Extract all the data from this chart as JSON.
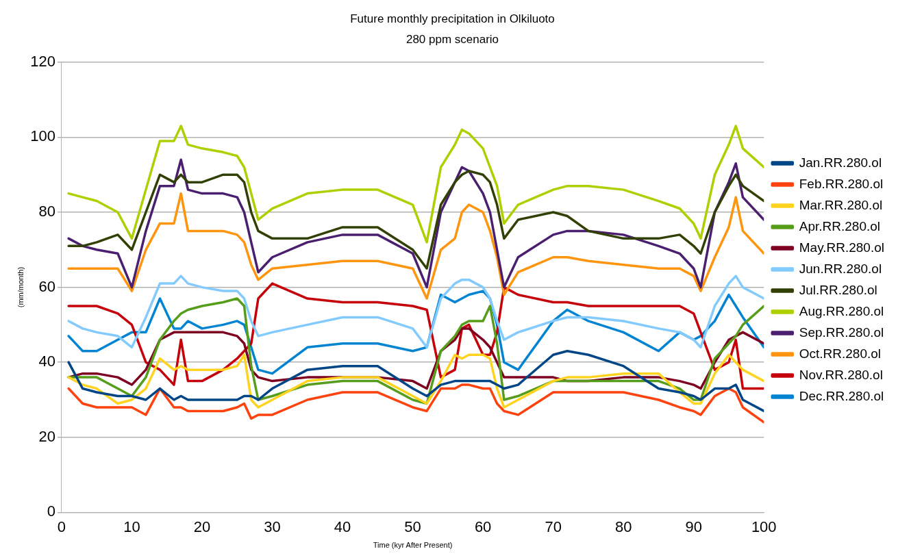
{
  "chart_data": {
    "type": "line",
    "title": "Future monthly precipitation in Olkiluoto",
    "subtitle": "280 ppm scenario",
    "xlabel": "Time (kyr After Present)",
    "ylabel": "(mm/month)",
    "x": [
      1,
      3,
      5,
      8,
      10,
      12,
      14,
      16,
      17,
      18,
      20,
      23,
      25,
      26,
      27,
      28,
      30,
      35,
      40,
      45,
      50,
      52,
      54,
      56,
      57,
      58,
      60,
      61,
      62,
      63,
      65,
      70,
      72,
      75,
      80,
      85,
      88,
      90,
      91,
      93,
      95,
      96,
      97,
      100
    ],
    "xlim": [
      0,
      100
    ],
    "xticks": [
      0,
      10,
      20,
      30,
      40,
      50,
      60,
      70,
      80,
      90,
      100
    ],
    "ylim": [
      0,
      120
    ],
    "yticks": [
      0,
      20,
      40,
      60,
      80,
      100,
      120
    ],
    "grid": "y",
    "legend": "right",
    "marker": "none",
    "line_style": "solid",
    "series": [
      {
        "name": "Jan.RR.280.ol",
        "color": "#004586",
        "values": [
          40,
          33,
          32,
          31,
          31,
          30,
          33,
          30,
          31,
          30,
          30,
          30,
          30,
          31,
          31,
          30,
          33,
          38,
          39,
          39,
          33,
          31,
          34,
          35,
          35,
          35,
          35,
          35,
          34,
          33,
          34,
          42,
          43,
          42,
          39,
          33,
          32,
          31,
          30,
          33,
          33,
          34,
          30,
          27
        ]
      },
      {
        "name": "Feb.RR.280.ol",
        "color": "#ff420e",
        "values": [
          33,
          29,
          28,
          28,
          28,
          26,
          33,
          28,
          28,
          27,
          27,
          27,
          28,
          29,
          25,
          26,
          26,
          30,
          32,
          32,
          28,
          27,
          33,
          33,
          34,
          34,
          33,
          33,
          29,
          27,
          26,
          32,
          32,
          32,
          32,
          30,
          28,
          27,
          26,
          31,
          33,
          32,
          28,
          24
        ]
      },
      {
        "name": "Mar.RR.280.ol",
        "color": "#ffd320",
        "values": [
          36,
          34,
          33,
          29,
          30,
          33,
          41,
          38,
          39,
          38,
          38,
          38,
          39,
          42,
          30,
          28,
          30,
          35,
          36,
          36,
          31,
          29,
          35,
          42,
          41,
          42,
          42,
          41,
          33,
          28,
          30,
          35,
          36,
          36,
          37,
          37,
          32,
          29,
          29,
          37,
          42,
          40,
          38,
          35
        ]
      },
      {
        "name": "Apr.RR.280.ol",
        "color": "#579d1c",
        "values": [
          36,
          36,
          36,
          33,
          31,
          36,
          46,
          51,
          53,
          54,
          55,
          56,
          57,
          55,
          39,
          30,
          31,
          34,
          35,
          35,
          30,
          29,
          43,
          47,
          50,
          51,
          51,
          55,
          45,
          30,
          31,
          35,
          35,
          35,
          35,
          35,
          33,
          30,
          30,
          41,
          45,
          47,
          50,
          55
        ]
      },
      {
        "name": "May.RR.280.ol",
        "color": "#7e0021",
        "values": [
          36,
          37,
          37,
          36,
          34,
          38,
          46,
          48,
          48,
          48,
          48,
          48,
          47,
          45,
          38,
          36,
          35,
          36,
          36,
          36,
          35,
          33,
          43,
          46,
          49,
          49,
          46,
          44,
          40,
          36,
          36,
          36,
          35,
          35,
          36,
          36,
          35,
          34,
          33,
          40,
          46,
          47,
          48,
          45
        ]
      },
      {
        "name": "Jun.RR.280.ol",
        "color": "#83caff",
        "values": [
          51,
          49,
          48,
          47,
          44,
          52,
          61,
          61,
          63,
          61,
          60,
          59,
          59,
          57,
          51,
          47,
          48,
          50,
          52,
          52,
          49,
          44,
          57,
          61,
          62,
          62,
          60,
          57,
          51,
          46,
          48,
          51,
          52,
          52,
          51,
          49,
          48,
          46,
          44,
          55,
          61,
          63,
          60,
          57
        ]
      },
      {
        "name": "Jul.RR.280.ol",
        "color": "#314004",
        "values": [
          71,
          71,
          72,
          74,
          70,
          80,
          90,
          88,
          90,
          88,
          88,
          90,
          90,
          88,
          80,
          75,
          73,
          73,
          76,
          76,
          70,
          65,
          82,
          88,
          90,
          91,
          90,
          88,
          82,
          73,
          78,
          80,
          79,
          75,
          73,
          73,
          74,
          71,
          69,
          80,
          87,
          90,
          87,
          83
        ]
      },
      {
        "name": "Aug.RR.280.ol",
        "color": "#aecf00",
        "values": [
          85,
          84,
          83,
          80,
          73,
          86,
          99,
          99,
          103,
          98,
          97,
          96,
          95,
          92,
          85,
          78,
          81,
          85,
          86,
          86,
          82,
          72,
          92,
          98,
          102,
          101,
          97,
          92,
          87,
          77,
          82,
          86,
          87,
          87,
          86,
          83,
          81,
          77,
          73,
          90,
          98,
          103,
          97,
          92
        ]
      },
      {
        "name": "Sep.RR.280.ol",
        "color": "#4b1f6f",
        "values": [
          73,
          71,
          70,
          69,
          60,
          75,
          87,
          87,
          94,
          86,
          85,
          85,
          84,
          80,
          72,
          64,
          68,
          72,
          74,
          74,
          69,
          60,
          80,
          88,
          92,
          91,
          85,
          80,
          70,
          60,
          68,
          74,
          75,
          75,
          74,
          71,
          69,
          65,
          60,
          80,
          88,
          93,
          84,
          78
        ]
      },
      {
        "name": "Oct.RR.280.ol",
        "color": "#ff950e",
        "values": [
          65,
          65,
          65,
          65,
          59,
          70,
          77,
          77,
          85,
          75,
          75,
          75,
          74,
          72,
          66,
          62,
          65,
          66,
          67,
          67,
          65,
          57,
          70,
          73,
          80,
          82,
          80,
          75,
          68,
          58,
          64,
          68,
          68,
          67,
          66,
          65,
          65,
          63,
          59,
          68,
          76,
          84,
          75,
          69
        ]
      },
      {
        "name": "Nov.RR.280.ol",
        "color": "#c5000b",
        "values": [
          55,
          55,
          55,
          53,
          50,
          40,
          38,
          34,
          46,
          35,
          35,
          38,
          41,
          43,
          45,
          57,
          61,
          57,
          56,
          56,
          55,
          54,
          36,
          38,
          49,
          50,
          42,
          42,
          48,
          60,
          58,
          56,
          56,
          55,
          55,
          55,
          55,
          53,
          48,
          38,
          40,
          46,
          33,
          33
        ]
      },
      {
        "name": "Dec.RR.280.ol",
        "color": "#0084d1",
        "values": [
          47,
          43,
          43,
          46,
          48,
          48,
          57,
          49,
          49,
          51,
          49,
          50,
          51,
          50,
          44,
          38,
          37,
          44,
          45,
          45,
          43,
          44,
          58,
          56,
          57,
          58,
          59,
          57,
          50,
          40,
          38,
          51,
          54,
          51,
          48,
          43,
          48,
          46,
          47,
          51,
          58,
          55,
          52,
          44
        ]
      }
    ]
  }
}
